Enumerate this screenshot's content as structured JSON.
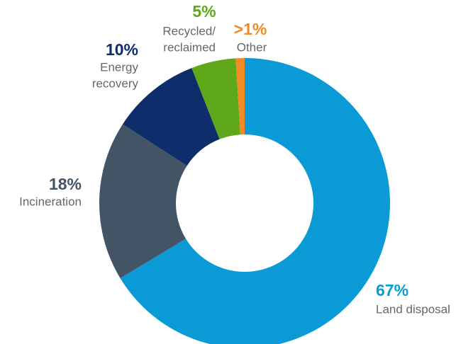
{
  "chart_data": {
    "type": "donut",
    "categories": [
      [
        "Land disposal"
      ],
      [
        "Incineration"
      ],
      [
        "Energy",
        "recovery"
      ],
      [
        "Recycled/",
        "reclaimed"
      ],
      [
        "Other"
      ]
    ],
    "values": [
      67,
      18,
      10,
      5,
      1
    ],
    "value_labels": [
      "67%",
      "18%",
      "10%",
      "5%",
      ">1%"
    ],
    "colors": [
      "#0a9ad6",
      "#435466",
      "#0e2d6b",
      "#5ea81a",
      "#f28b24"
    ]
  }
}
